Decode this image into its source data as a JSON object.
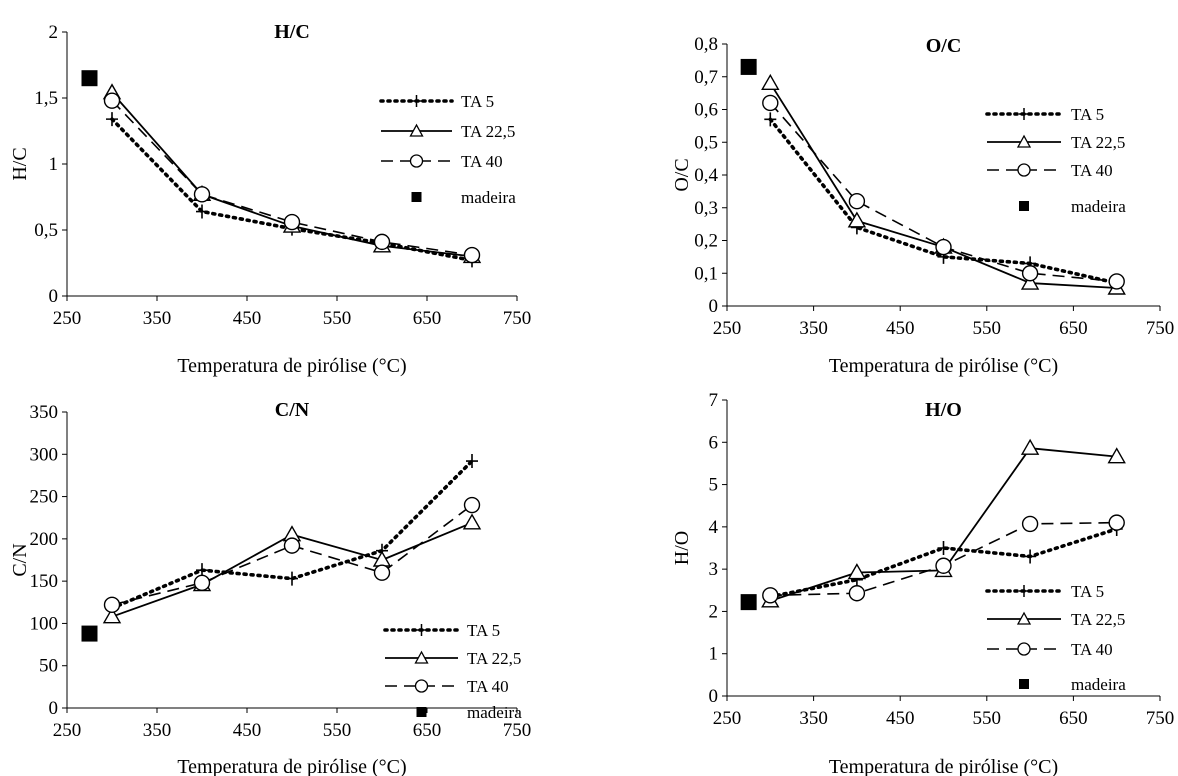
{
  "chart_data": [
    {
      "type": "line",
      "title": "H/C",
      "xlabel": "Temperatura de pirólise (°C)",
      "ylabel": "H/C",
      "xlim": [
        250,
        750
      ],
      "ylim": [
        0,
        2
      ],
      "xticks": [
        250,
        350,
        450,
        550,
        650,
        750
      ],
      "yticks": [
        0,
        0.5,
        1,
        1.5,
        2
      ],
      "ytick_labels": [
        "0",
        "0,5",
        "1",
        "1,5",
        "2"
      ],
      "series": [
        {
          "name": "TA 5",
          "x": [
            300,
            400,
            500,
            600,
            700
          ],
          "y": [
            1.34,
            0.64,
            0.51,
            0.4,
            0.27
          ]
        },
        {
          "name": "TA 22,5",
          "x": [
            300,
            400,
            500,
            600,
            700
          ],
          "y": [
            1.54,
            0.77,
            0.53,
            0.38,
            0.3
          ]
        },
        {
          "name": "TA 40",
          "x": [
            300,
            400,
            500,
            600,
            700
          ],
          "y": [
            1.48,
            0.77,
            0.56,
            0.41,
            0.31
          ]
        },
        {
          "name": "madeira",
          "x": [
            275
          ],
          "y": [
            1.65
          ]
        }
      ]
    },
    {
      "type": "line",
      "title": "O/C",
      "xlabel": "Temperatura de pirólise (°C)",
      "ylabel": "O/C",
      "xlim": [
        250,
        750
      ],
      "ylim": [
        0,
        0.8
      ],
      "xticks": [
        250,
        350,
        450,
        550,
        650,
        750
      ],
      "yticks": [
        0,
        0.1,
        0.2,
        0.3,
        0.4,
        0.5,
        0.6,
        0.7,
        0.8
      ],
      "ytick_labels": [
        "0",
        "0,1",
        "0,2",
        "0,3",
        "0,4",
        "0,5",
        "0,6",
        "0,7",
        "0,8"
      ],
      "series": [
        {
          "name": "TA 5",
          "x": [
            300,
            400,
            500,
            600,
            700
          ],
          "y": [
            0.57,
            0.24,
            0.15,
            0.13,
            0.07
          ]
        },
        {
          "name": "TA 22,5",
          "x": [
            300,
            400,
            500,
            600,
            700
          ],
          "y": [
            0.68,
            0.26,
            0.18,
            0.07,
            0.055
          ]
        },
        {
          "name": "TA 40",
          "x": [
            300,
            400,
            500,
            600,
            700
          ],
          "y": [
            0.62,
            0.32,
            0.18,
            0.1,
            0.075
          ]
        },
        {
          "name": "madeira",
          "x": [
            275
          ],
          "y": [
            0.73
          ]
        }
      ]
    },
    {
      "type": "line",
      "title": "C/N",
      "xlabel": "Temperatura de pirólise (°C)",
      "ylabel": "C/N",
      "xlim": [
        250,
        750
      ],
      "ylim": [
        0,
        350
      ],
      "xticks": [
        250,
        350,
        450,
        550,
        650,
        750
      ],
      "yticks": [
        0,
        50,
        100,
        150,
        200,
        250,
        300,
        350
      ],
      "ytick_labels": [
        "0",
        "50",
        "100",
        "150",
        "200",
        "250",
        "300",
        "350"
      ],
      "series": [
        {
          "name": "TA 5",
          "x": [
            300,
            400,
            500,
            600,
            700
          ],
          "y": [
            118,
            163,
            153,
            186,
            292
          ]
        },
        {
          "name": "TA 22,5",
          "x": [
            300,
            400,
            500,
            600,
            700
          ],
          "y": [
            108,
            146,
            205,
            175,
            219
          ]
        },
        {
          "name": "TA 40",
          "x": [
            300,
            400,
            500,
            600,
            700
          ],
          "y": [
            122,
            148,
            192,
            160,
            240
          ]
        },
        {
          "name": "madeira",
          "x": [
            275
          ],
          "y": [
            88
          ]
        }
      ]
    },
    {
      "type": "line",
      "title": "H/O",
      "xlabel": "Temperatura de pirólise (°C)",
      "ylabel": "H/O",
      "xlim": [
        250,
        750
      ],
      "ylim": [
        0,
        7
      ],
      "xticks": [
        250,
        350,
        450,
        550,
        650,
        750
      ],
      "yticks": [
        0,
        1,
        2,
        3,
        4,
        5,
        6,
        7
      ],
      "ytick_labels": [
        "0",
        "1",
        "2",
        "3",
        "4",
        "5",
        "6",
        "7"
      ],
      "series": [
        {
          "name": "TA 5",
          "x": [
            300,
            400,
            500,
            600,
            700
          ],
          "y": [
            2.35,
            2.75,
            3.5,
            3.3,
            3.95
          ]
        },
        {
          "name": "TA 22,5",
          "x": [
            300,
            400,
            500,
            600,
            700
          ],
          "y": [
            2.25,
            2.92,
            2.97,
            5.86,
            5.66
          ]
        },
        {
          "name": "TA 40",
          "x": [
            300,
            400,
            500,
            600,
            700
          ],
          "y": [
            2.38,
            2.43,
            3.08,
            4.07,
            4.1
          ]
        },
        {
          "name": "madeira",
          "x": [
            275
          ],
          "y": [
            2.22
          ]
        }
      ]
    }
  ]
}
